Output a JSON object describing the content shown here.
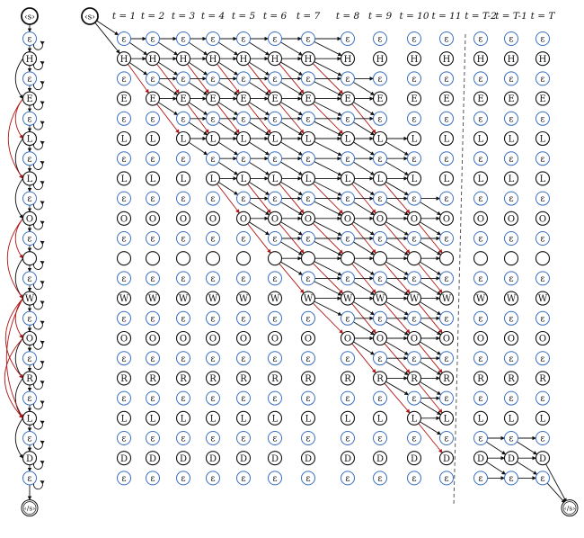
{
  "start_symbol": "‹s›",
  "end_symbol": "‹/s›",
  "eps_symbol": "ε",
  "t_labels": [
    "t = 1",
    "t = 2",
    "t = 3",
    "t = 4",
    "t = 5",
    "t = 6",
    "t = 7",
    "t = 8",
    "t = 9",
    "t = 10",
    "t = 11",
    "t = T-2",
    "t = T-1",
    "t = T"
  ],
  "states": [
    "ε",
    "H",
    "ε",
    "E",
    "ε",
    "L",
    "ε",
    "L",
    "ε",
    "O",
    "ε",
    "",
    "ε",
    "W",
    "ε",
    "O",
    "ε",
    "R",
    "ε",
    "L",
    "ε",
    "D",
    "ε"
  ],
  "colors": {
    "blank": "#3a6fc4",
    "skip_arc": "#b01818",
    "ink": "#111111"
  }
}
